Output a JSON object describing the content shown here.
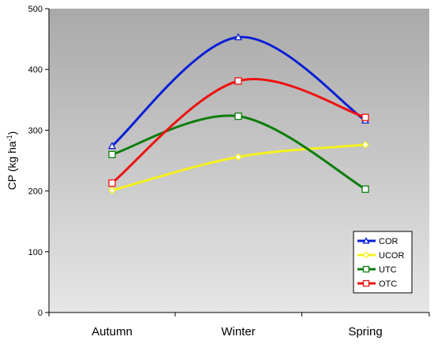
{
  "chart_data": {
    "type": "line",
    "categories": [
      "Autumn",
      "Winter",
      "Spring"
    ],
    "ylabel_main": "CP (kg ha",
    "ylabel_sup": "-1",
    "ylabel_close": ")",
    "ylim": [
      0,
      500
    ],
    "yticks": [
      0,
      100,
      200,
      300,
      400,
      500
    ],
    "grid": false,
    "legend_position": "bottom-right",
    "plot_background": [
      "#a9a9a9",
      "#e6e6e6"
    ],
    "series": [
      {
        "name": "COR",
        "values": [
          274,
          453,
          316
        ],
        "color": "#0a1fd6",
        "marker": "triangle"
      },
      {
        "name": "UCOR",
        "values": [
          201,
          256,
          276
        ],
        "color": "#f5f01e",
        "marker": "diamond"
      },
      {
        "name": "UTC",
        "values": [
          260,
          323,
          203
        ],
        "color": "#0c7d0c",
        "marker": "square"
      },
      {
        "name": "OTC",
        "values": [
          213,
          381,
          321
        ],
        "color": "#ee1111",
        "marker": "square"
      }
    ]
  }
}
